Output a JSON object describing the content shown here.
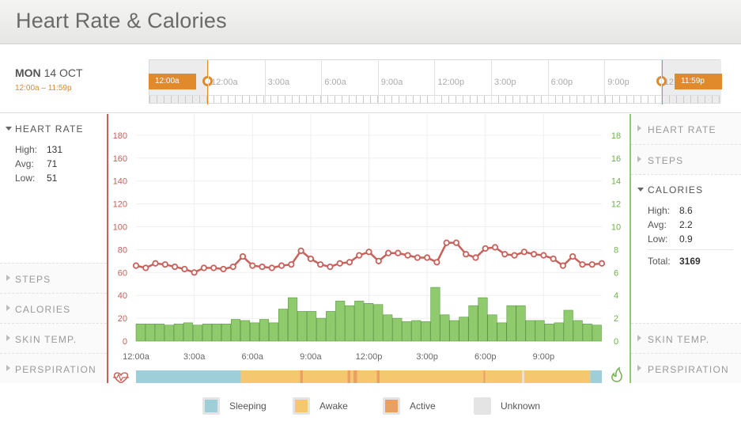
{
  "header": {
    "title": "Heart Rate & Calories"
  },
  "date": {
    "day": "MON",
    "date": "14 OCT",
    "range": "12:00a – 11:59p"
  },
  "timeline": {
    "start_flag": "12:00a",
    "end_flag": "11:59p",
    "labels": [
      "12:00a",
      "3:00a",
      "6:00a",
      "9:00a",
      "12:00p",
      "3:00p",
      "6:00p",
      "9:00p",
      "12"
    ]
  },
  "left_panel": {
    "heart_rate": {
      "title": "HEART RATE",
      "high_label": "High:",
      "high": "131",
      "avg_label": "Avg:",
      "avg": "71",
      "low_label": "Low:",
      "low": "51"
    },
    "collapsed": [
      "STEPS",
      "CALORIES",
      "SKIN TEMP.",
      "PERSPIRATION"
    ]
  },
  "right_panel": {
    "collapsed_top": [
      "HEART RATE",
      "STEPS"
    ],
    "calories": {
      "title": "CALORIES",
      "high_label": "High:",
      "high": "8.6",
      "avg_label": "Avg:",
      "avg": "2.2",
      "low_label": "Low:",
      "low": "0.9",
      "total_label": "Total:",
      "total": "3169"
    },
    "collapsed_bottom": [
      "SKIN TEMP.",
      "PERSPIRATION"
    ]
  },
  "colors": {
    "heart": "#c9605a",
    "calories": "#8fcb6d",
    "calories_stroke": "#5e9a45",
    "accent": "#e08a2c",
    "sleeping": "#9ecfd8",
    "awake": "#f5c76e",
    "active": "#e9a060",
    "unknown": "#e4e4e4"
  },
  "legend": [
    {
      "label": "Sleeping",
      "color": "#9ecfd8"
    },
    {
      "label": "Awake",
      "color": "#f5c76e"
    },
    {
      "label": "Active",
      "color": "#e9a060"
    },
    {
      "label": "Unknown",
      "color": "#e4e4e4"
    }
  ],
  "chart_data": {
    "type": "line",
    "x_tick_labels": [
      "12:00a",
      "3:00a",
      "6:00a",
      "9:00a",
      "12:00p",
      "3:00p",
      "6:00p",
      "9:00p"
    ],
    "x_range_hours": [
      0,
      24
    ],
    "left_axis": {
      "ticks": [
        0,
        20,
        40,
        60,
        80,
        100,
        120,
        140,
        160,
        180
      ],
      "range": [
        0,
        200
      ]
    },
    "right_axis": {
      "ticks": [
        0,
        2,
        4,
        6,
        8,
        10,
        12,
        14,
        16,
        18
      ],
      "range": [
        0,
        20
      ]
    },
    "series": [
      {
        "type": "line",
        "axis": "left",
        "values": [
          66,
          64,
          68,
          67,
          65,
          63,
          60,
          64,
          64,
          63,
          65,
          74,
          66,
          65,
          64,
          66,
          67,
          79,
          72,
          67,
          65,
          68,
          69,
          75,
          78,
          70,
          77,
          77,
          75,
          73,
          73,
          69,
          86,
          86,
          76,
          73,
          81,
          82,
          76,
          75,
          78,
          76,
          75,
          72,
          66,
          74,
          67,
          67,
          68
        ]
      },
      {
        "type": "bar",
        "axis": "right",
        "values": [
          1.5,
          1.5,
          1.5,
          1.4,
          1.5,
          1.6,
          1.4,
          1.5,
          1.5,
          1.5,
          1.9,
          1.8,
          1.6,
          1.9,
          1.6,
          2.8,
          3.8,
          2.6,
          2.6,
          2.0,
          2.6,
          3.5,
          3.1,
          3.5,
          3.3,
          3.2,
          2.3,
          2.0,
          1.7,
          1.8,
          1.7,
          4.7,
          2.3,
          1.8,
          2.1,
          3.1,
          3.8,
          2.3,
          1.6,
          3.1,
          3.1,
          1.8,
          1.8,
          1.5,
          1.6,
          2.7,
          1.8,
          1.5,
          1.4
        ]
      }
    ],
    "activity_band": [
      {
        "state": "sleeping",
        "from": 0,
        "to": 5.4
      },
      {
        "state": "awake",
        "from": 5.4,
        "to": 8.45
      },
      {
        "state": "active",
        "from": 8.45,
        "to": 8.6
      },
      {
        "state": "awake",
        "from": 8.6,
        "to": 10.9
      },
      {
        "state": "active",
        "from": 10.9,
        "to": 11.05
      },
      {
        "state": "awake",
        "from": 11.05,
        "to": 11.2
      },
      {
        "state": "active",
        "from": 11.2,
        "to": 11.4
      },
      {
        "state": "awake",
        "from": 11.4,
        "to": 12.4
      },
      {
        "state": "active",
        "from": 12.4,
        "to": 12.55
      },
      {
        "state": "awake",
        "from": 12.55,
        "to": 17.9
      },
      {
        "state": "active",
        "from": 17.9,
        "to": 18.0
      },
      {
        "state": "awake",
        "from": 18.0,
        "to": 19.9
      },
      {
        "state": "unknown",
        "from": 19.9,
        "to": 20.0
      },
      {
        "state": "awake",
        "from": 20.0,
        "to": 23.4
      },
      {
        "state": "sleeping",
        "from": 23.4,
        "to": 24
      }
    ]
  }
}
